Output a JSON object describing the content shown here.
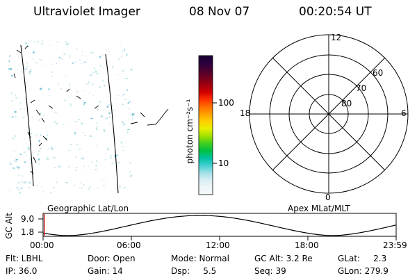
{
  "header": {
    "instrument": "Ultraviolet Imager",
    "date": "08 Nov 07",
    "time": "00:20:54 UT"
  },
  "colorbar": {
    "unit_label": "photon cm⁻²s⁻¹",
    "ticks": [
      "100",
      "10"
    ],
    "stops": [
      "#1a0033",
      "#2a003f",
      "#4a0030",
      "#700020",
      "#a00010",
      "#d00000",
      "#ff3000",
      "#ff7000",
      "#ffa000",
      "#ffd000",
      "#e8f000",
      "#a0e000",
      "#40d020",
      "#00c040",
      "#00c0a0",
      "#40d0d0",
      "#a0e0e8",
      "#d8eef2",
      "#eef6f8",
      "#f4f8fa"
    ]
  },
  "polar_plot": {
    "labels": {
      "top": "12",
      "bottom": "0",
      "left": "18",
      "right": "6",
      "lat60": "60",
      "lat70": "70",
      "lat80": "80"
    }
  },
  "altitude_panel": {
    "ylabel": "GC Alt",
    "left_label": "Geographic Lat/Lon",
    "right_label": "Apex MLat/MLT",
    "y_ticks": [
      "9.0",
      "1.8"
    ],
    "x_ticks": [
      "00:00",
      "06:00",
      "12:00",
      "18:00",
      "23:59"
    ]
  },
  "info": {
    "flt": "Flt: LBHL",
    "ip": "IP: 36.0",
    "door": "Door: Open",
    "gain": "Gain: 14",
    "mode": "Mode: Normal",
    "dsp": "Dsp:     5.5",
    "gc_alt": "GC Alt: 3.2 Re",
    "seq": "Seq: 39",
    "glat": "GLat:     2.3",
    "glon": "GLon: 279.9"
  }
}
